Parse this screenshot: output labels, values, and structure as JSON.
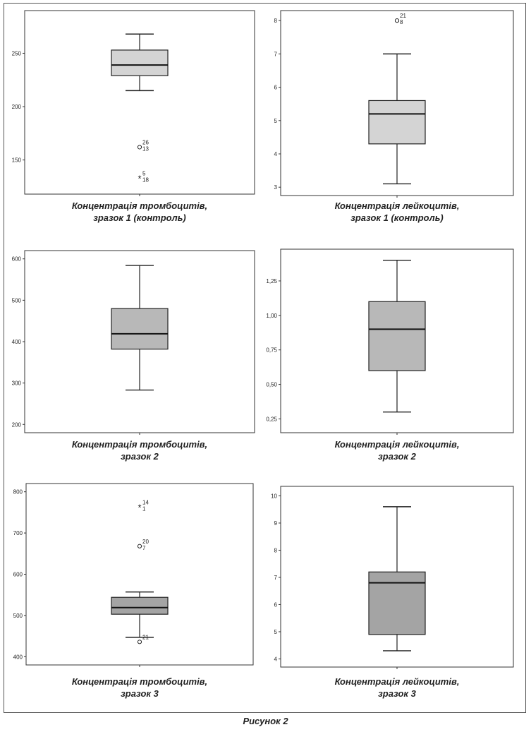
{
  "figure": {
    "caption": "Рисунок 2"
  },
  "chart_data": [
    {
      "type": "boxplot",
      "caption_lines": [
        "Концентрація тромбоцитів,",
        "зразок 1 (контроль)"
      ],
      "ylim": [
        118,
        290
      ],
      "yticks": [
        {
          "v": 150,
          "label": "150"
        },
        {
          "v": 200,
          "label": "200"
        },
        {
          "v": 250,
          "label": "250"
        }
      ],
      "box": {
        "whisker_low": 215,
        "q1": 229,
        "median": 239,
        "q3": 253,
        "whisker_high": 268
      },
      "fill": "#d4d4d4",
      "outliers": [
        {
          "value": 162,
          "marker": "o",
          "labels": [
            "26",
            "13"
          ]
        },
        {
          "value": 133,
          "marker": "*",
          "labels": [
            "5",
            "18"
          ]
        }
      ]
    },
    {
      "type": "boxplot",
      "caption_lines": [
        "Концентрація лейкоцитів,",
        "зразок 1 (контроль)"
      ],
      "ylim": [
        2.75,
        8.3
      ],
      "yticks": [
        {
          "v": 3,
          "label": "3"
        },
        {
          "v": 4,
          "label": "4"
        },
        {
          "v": 5,
          "label": "5"
        },
        {
          "v": 6,
          "label": "6"
        },
        {
          "v": 7,
          "label": "7"
        },
        {
          "v": 8,
          "label": "8"
        }
      ],
      "box": {
        "whisker_low": 3.1,
        "q1": 4.3,
        "median": 5.2,
        "q3": 5.6,
        "whisker_high": 7.0
      },
      "fill": "#d4d4d4",
      "outliers": [
        {
          "value": 8.0,
          "marker": "o",
          "labels": [
            "21",
            "8"
          ]
        }
      ]
    },
    {
      "type": "boxplot",
      "caption_lines": [
        "Концентрація тромбоцитів,",
        "зразок 2"
      ],
      "ylim": [
        180,
        620
      ],
      "yticks": [
        {
          "v": 200,
          "label": "200"
        },
        {
          "v": 300,
          "label": "300"
        },
        {
          "v": 400,
          "label": "400"
        },
        {
          "v": 500,
          "label": "500"
        },
        {
          "v": 600,
          "label": "600"
        }
      ],
      "box": {
        "whisker_low": 283,
        "q1": 382,
        "median": 419,
        "q3": 480,
        "whisker_high": 584
      },
      "fill": "#b8b8b8",
      "outliers": []
    },
    {
      "type": "boxplot",
      "caption_lines": [
        "Концентрація лейкоцитів,",
        "зразок 2"
      ],
      "ylim": [
        0.15,
        1.48
      ],
      "yticks": [
        {
          "v": 0.25,
          "label": "0,25"
        },
        {
          "v": 0.5,
          "label": "0,50"
        },
        {
          "v": 0.75,
          "label": "0,75"
        },
        {
          "v": 1.0,
          "label": "1,00"
        },
        {
          "v": 1.25,
          "label": "1,25"
        }
      ],
      "box": {
        "whisker_low": 0.3,
        "q1": 0.6,
        "median": 0.9,
        "q3": 1.1,
        "whisker_high": 1.4
      },
      "fill": "#b8b8b8",
      "outliers": []
    },
    {
      "type": "boxplot",
      "caption_lines": [
        "Концентрація тромбоцитів,",
        "зразок 3"
      ],
      "ylim": [
        380,
        820
      ],
      "yticks": [
        {
          "v": 400,
          "label": "400"
        },
        {
          "v": 500,
          "label": "500"
        },
        {
          "v": 600,
          "label": "600"
        },
        {
          "v": 700,
          "label": "700"
        },
        {
          "v": 800,
          "label": "800"
        }
      ],
      "box": {
        "whisker_low": 447,
        "q1": 503,
        "median": 519,
        "q3": 544,
        "whisker_high": 557
      },
      "fill": "#a4a4a4",
      "outliers": [
        {
          "value": 763,
          "marker": "*",
          "labels": [
            "14",
            "1"
          ]
        },
        {
          "value": 668,
          "marker": "o",
          "labels": [
            "20",
            "7"
          ]
        },
        {
          "value": 436,
          "marker": "o",
          "labels": [
            "21"
          ]
        }
      ]
    },
    {
      "type": "boxplot",
      "caption_lines": [
        "Концентрація лейкоцитів,",
        "зразок 3"
      ],
      "ylim": [
        3.7,
        10.35
      ],
      "yticks": [
        {
          "v": 4,
          "label": "4"
        },
        {
          "v": 5,
          "label": "5"
        },
        {
          "v": 6,
          "label": "6"
        },
        {
          "v": 7,
          "label": "7"
        },
        {
          "v": 8,
          "label": "8"
        },
        {
          "v": 9,
          "label": "9"
        },
        {
          "v": 10,
          "label": "10"
        }
      ],
      "box": {
        "whisker_low": 4.3,
        "q1": 4.9,
        "median": 6.8,
        "q3": 7.2,
        "whisker_high": 9.6
      },
      "fill": "#a4a4a4",
      "outliers": []
    }
  ]
}
